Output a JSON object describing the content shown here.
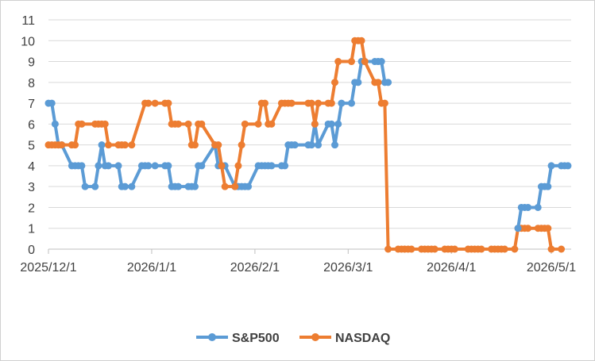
{
  "chart_data": {
    "type": "line",
    "title": "",
    "xlabel": "",
    "ylabel": "",
    "ylim": [
      0,
      11
    ],
    "y_ticks": [
      "0",
      "1",
      "2",
      "3",
      "4",
      "5",
      "6",
      "7",
      "8",
      "9",
      "10",
      "11"
    ],
    "x_tick_labels": [
      "2025/12/1",
      "2026/1/1",
      "2026/2/1",
      "2026/3/1",
      "2026/4/1",
      "2026/5/1"
    ],
    "x_tick_dates": [
      "2025-12-01",
      "2026-01-01",
      "2026-02-01",
      "2026-03-01",
      "2026-04-01",
      "2026-05-01"
    ],
    "grid": "horizontal",
    "legend_position": "bottom",
    "series": [
      {
        "name": "S&P500",
        "color": "#5B9BD5",
        "points": [
          [
            "2025-12-01",
            7
          ],
          [
            "2025-12-02",
            7
          ],
          [
            "2025-12-03",
            6
          ],
          [
            "2025-12-04",
            5
          ],
          [
            "2025-12-05",
            5
          ],
          [
            "2025-12-08",
            4
          ],
          [
            "2025-12-09",
            4
          ],
          [
            "2025-12-10",
            4
          ],
          [
            "2025-12-11",
            4
          ],
          [
            "2025-12-12",
            3
          ],
          [
            "2025-12-15",
            3
          ],
          [
            "2025-12-16",
            4
          ],
          [
            "2025-12-17",
            5
          ],
          [
            "2025-12-18",
            4
          ],
          [
            "2025-12-19",
            4
          ],
          [
            "2025-12-22",
            4
          ],
          [
            "2025-12-23",
            3
          ],
          [
            "2025-12-24",
            3
          ],
          [
            "2025-12-26",
            3
          ],
          [
            "2025-12-29",
            4
          ],
          [
            "2025-12-30",
            4
          ],
          [
            "2025-12-31",
            4
          ],
          [
            "2026-01-02",
            4
          ],
          [
            "2026-01-05",
            4
          ],
          [
            "2026-01-06",
            4
          ],
          [
            "2026-01-07",
            3
          ],
          [
            "2026-01-08",
            3
          ],
          [
            "2026-01-09",
            3
          ],
          [
            "2026-01-12",
            3
          ],
          [
            "2026-01-13",
            3
          ],
          [
            "2026-01-14",
            3
          ],
          [
            "2026-01-15",
            4
          ],
          [
            "2026-01-16",
            4
          ],
          [
            "2026-01-20",
            5
          ],
          [
            "2026-01-21",
            4
          ],
          [
            "2026-01-22",
            4
          ],
          [
            "2026-01-23",
            4
          ],
          [
            "2026-01-26",
            3
          ],
          [
            "2026-01-27",
            3
          ],
          [
            "2026-01-28",
            3
          ],
          [
            "2026-01-29",
            3
          ],
          [
            "2026-01-30",
            3
          ],
          [
            "2026-02-02",
            4
          ],
          [
            "2026-02-03",
            4
          ],
          [
            "2026-02-04",
            4
          ],
          [
            "2026-02-05",
            4
          ],
          [
            "2026-02-06",
            4
          ],
          [
            "2026-02-09",
            4
          ],
          [
            "2026-02-10",
            4
          ],
          [
            "2026-02-11",
            5
          ],
          [
            "2026-02-12",
            5
          ],
          [
            "2026-02-13",
            5
          ],
          [
            "2026-02-17",
            5
          ],
          [
            "2026-02-18",
            5
          ],
          [
            "2026-02-19",
            6
          ],
          [
            "2026-02-20",
            5
          ],
          [
            "2026-02-23",
            6
          ],
          [
            "2026-02-24",
            6
          ],
          [
            "2026-02-25",
            5
          ],
          [
            "2026-02-26",
            6
          ],
          [
            "2026-02-27",
            7
          ],
          [
            "2026-03-02",
            7
          ],
          [
            "2026-03-03",
            8
          ],
          [
            "2026-03-04",
            8
          ],
          [
            "2026-03-05",
            9
          ],
          [
            "2026-03-06",
            9
          ],
          [
            "2026-03-09",
            9
          ],
          [
            "2026-03-10",
            9
          ],
          [
            "2026-03-11",
            9
          ],
          [
            "2026-03-12",
            8
          ],
          [
            "2026-03-13",
            8
          ]
        ]
      },
      {
        "name": "NASDAQ",
        "color": "#ED7D31",
        "points": [
          [
            "2025-12-01",
            5
          ],
          [
            "2025-12-02",
            5
          ],
          [
            "2025-12-03",
            5
          ],
          [
            "2025-12-04",
            5
          ],
          [
            "2025-12-05",
            5
          ],
          [
            "2025-12-08",
            5
          ],
          [
            "2025-12-09",
            5
          ],
          [
            "2025-12-10",
            6
          ],
          [
            "2025-12-11",
            6
          ],
          [
            "2025-12-15",
            6
          ],
          [
            "2025-12-16",
            6
          ],
          [
            "2025-12-17",
            6
          ],
          [
            "2025-12-18",
            6
          ],
          [
            "2025-12-19",
            5
          ],
          [
            "2025-12-22",
            5
          ],
          [
            "2025-12-23",
            5
          ],
          [
            "2025-12-24",
            5
          ],
          [
            "2025-12-26",
            5
          ],
          [
            "2025-12-30",
            7
          ],
          [
            "2025-12-31",
            7
          ],
          [
            "2026-01-02",
            7
          ],
          [
            "2026-01-05",
            7
          ],
          [
            "2026-01-06",
            7
          ],
          [
            "2026-01-07",
            6
          ],
          [
            "2026-01-08",
            6
          ],
          [
            "2026-01-09",
            6
          ],
          [
            "2026-01-12",
            6
          ],
          [
            "2026-01-13",
            5
          ],
          [
            "2026-01-14",
            5
          ],
          [
            "2026-01-15",
            6
          ],
          [
            "2026-01-16",
            6
          ],
          [
            "2026-01-20",
            5
          ],
          [
            "2026-01-21",
            5
          ],
          [
            "2026-01-22",
            4
          ],
          [
            "2026-01-23",
            3
          ],
          [
            "2026-01-26",
            3
          ],
          [
            "2026-01-27",
            4
          ],
          [
            "2026-01-28",
            5
          ],
          [
            "2026-01-29",
            6
          ],
          [
            "2026-02-02",
            6
          ],
          [
            "2026-02-03",
            7
          ],
          [
            "2026-02-04",
            7
          ],
          [
            "2026-02-05",
            6
          ],
          [
            "2026-02-06",
            6
          ],
          [
            "2026-02-09",
            7
          ],
          [
            "2026-02-10",
            7
          ],
          [
            "2026-02-11",
            7
          ],
          [
            "2026-02-12",
            7
          ],
          [
            "2026-02-17",
            7
          ],
          [
            "2026-02-18",
            7
          ],
          [
            "2026-02-19",
            6
          ],
          [
            "2026-02-20",
            7
          ],
          [
            "2026-02-23",
            7
          ],
          [
            "2026-02-24",
            7
          ],
          [
            "2026-02-25",
            8
          ],
          [
            "2026-02-26",
            9
          ],
          [
            "2026-03-02",
            9
          ],
          [
            "2026-03-03",
            10
          ],
          [
            "2026-03-04",
            10
          ],
          [
            "2026-03-05",
            10
          ],
          [
            "2026-03-06",
            9
          ],
          [
            "2026-03-09",
            8
          ],
          [
            "2026-03-10",
            8
          ],
          [
            "2026-03-11",
            7
          ],
          [
            "2026-03-12",
            7
          ],
          [
            "2026-03-13",
            0
          ],
          [
            "2026-03-16",
            0
          ],
          [
            "2026-03-17",
            0
          ],
          [
            "2026-03-18",
            0
          ],
          [
            "2026-03-19",
            0
          ],
          [
            "2026-03-20",
            0
          ],
          [
            "2026-03-23",
            0
          ],
          [
            "2026-03-24",
            0
          ],
          [
            "2026-03-25",
            0
          ],
          [
            "2026-03-26",
            0
          ],
          [
            "2026-03-27",
            0
          ],
          [
            "2026-03-30",
            0
          ],
          [
            "2026-03-31",
            0
          ],
          [
            "2026-04-01",
            0
          ],
          [
            "2026-04-02",
            0
          ],
          [
            "2026-04-06",
            0
          ],
          [
            "2026-04-07",
            0
          ],
          [
            "2026-04-08",
            0
          ],
          [
            "2026-04-09",
            0
          ],
          [
            "2026-04-10",
            0
          ],
          [
            "2026-04-13",
            0
          ],
          [
            "2026-04-14",
            0
          ],
          [
            "2026-04-15",
            0
          ],
          [
            "2026-04-16",
            0
          ],
          [
            "2026-04-17",
            0
          ],
          [
            "2026-04-20",
            0
          ],
          [
            "2026-04-21",
            1
          ],
          [
            "2026-04-22",
            1
          ],
          [
            "2026-04-23",
            1
          ],
          [
            "2026-04-24",
            1
          ],
          [
            "2026-04-27",
            1
          ],
          [
            "2026-04-28",
            1
          ],
          [
            "2026-04-29",
            1
          ],
          [
            "2026-04-30",
            1
          ],
          [
            "2026-05-01",
            0
          ],
          [
            "2026-05-04",
            0
          ]
        ]
      },
      {
        "name": "S&P500",
        "legend": false,
        "color": "#5B9BD5",
        "points": [
          [
            "2026-04-21",
            1
          ],
          [
            "2026-04-22",
            2
          ],
          [
            "2026-04-23",
            2
          ],
          [
            "2026-04-24",
            2
          ],
          [
            "2026-04-27",
            2
          ],
          [
            "2026-04-28",
            3
          ],
          [
            "2026-04-29",
            3
          ],
          [
            "2026-04-30",
            3
          ],
          [
            "2026-05-01",
            4
          ],
          [
            "2026-05-04",
            4
          ],
          [
            "2026-05-05",
            4
          ],
          [
            "2026-05-06",
            4
          ]
        ]
      }
    ]
  }
}
